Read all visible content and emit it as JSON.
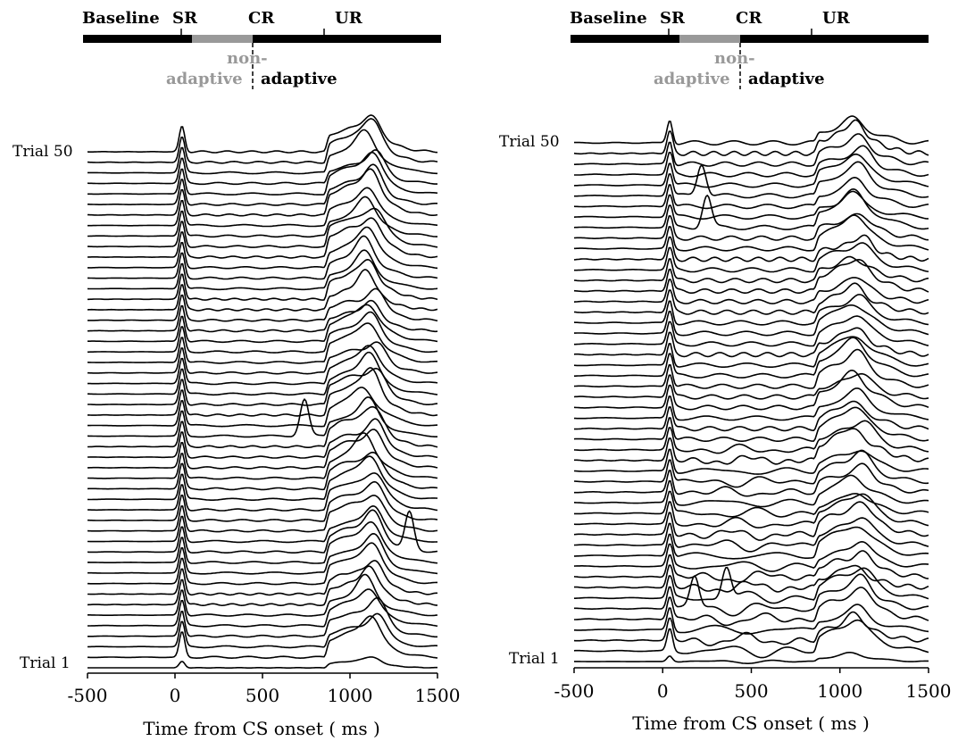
{
  "chart_data": [
    {
      "type": "line",
      "panel": "left",
      "title": "",
      "xlabel": "Time from CS onset ( ms )",
      "ylabel": "",
      "xlim": [
        -500,
        1500
      ],
      "xticks": [
        -500,
        0,
        500,
        1000,
        1500
      ],
      "trial_count": 50,
      "y_labels": {
        "first": "Trial 1",
        "last": "Trial 50"
      },
      "phase_labels": [
        "Baseline",
        "SR",
        "CR",
        "UR"
      ],
      "phase_boundaries_ms": [
        50,
        400,
        850
      ],
      "period_labels": {
        "nonadaptive_1": "non-",
        "nonadaptive_2": "adaptive",
        "adaptive": "adaptive"
      },
      "phase_colors": {
        "main": "#000000",
        "nonadaptive": "#999999"
      },
      "features": {
        "sr_peak_ms": 40,
        "cr_onset_ms": 860,
        "cr_peak_ms": 900,
        "ur_peak_ms": 1120,
        "isolated_peaks": [
          {
            "trial": 23,
            "ms": 740
          },
          {
            "trial": 12,
            "ms": 1340
          }
        ]
      }
    },
    {
      "type": "line",
      "panel": "right",
      "title": "",
      "xlabel": "Time from CS  onset ( ms )",
      "ylabel": "",
      "xlim": [
        -500,
        1500
      ],
      "xticks": [
        -500,
        0,
        500,
        1000,
        1500
      ],
      "trial_count": 50,
      "y_labels": {
        "first": "Trial 1",
        "last": "Trial 50"
      },
      "phase_labels": [
        "Baseline",
        "SR",
        "CR",
        "UR"
      ],
      "phase_boundaries_ms": [
        50,
        400,
        850
      ],
      "period_labels": {
        "nonadaptive_1": "non-",
        "nonadaptive_2": "adaptive",
        "adaptive": "adaptive"
      },
      "phase_colors": {
        "main": "#000000",
        "nonadaptive": "#999999"
      },
      "features": {
        "sr_peak_ms": 40,
        "cr_onset_ms": 860,
        "cr_peak_ms": 920,
        "ur_peak_ms": 1100,
        "isolated_peaks": [
          {
            "trial": 45,
            "ms": 220
          },
          {
            "trial": 42,
            "ms": 250
          },
          {
            "trial": 7,
            "ms": 360
          },
          {
            "trial": 6,
            "ms": 180
          }
        ]
      }
    }
  ]
}
